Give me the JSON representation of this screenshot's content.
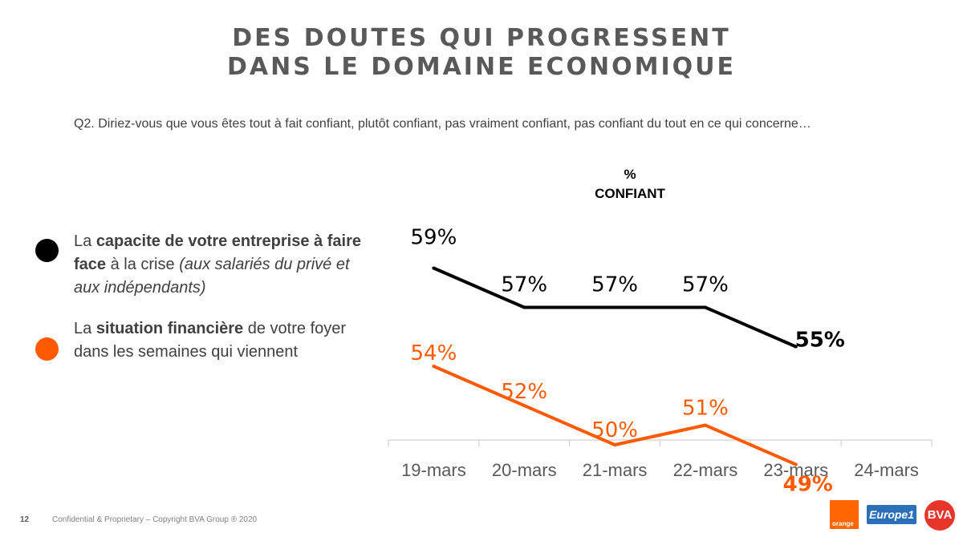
{
  "header": {
    "title_line1": "DES DOUTES QUI PROGRESSENT",
    "title_line2": "DANS LE DOMAINE ECONOMIQUE",
    "question": "Q2. Diriez-vous que vous êtes tout à fait confiant, plutôt confiant, pas vraiment confiant, pas confiant du tout en ce qui concerne…",
    "pct_line1": "%",
    "pct_line2": "CONFIANT"
  },
  "legend": [
    {
      "color": "#000000",
      "text_prefix": "La ",
      "text_bold": "capacite de votre entreprise à faire face",
      "text_after": " à la crise ",
      "text_italic": "(aux salariés du privé et aux indépendants)"
    },
    {
      "color": "#ff5a00",
      "text_prefix": "La ",
      "text_bold": "situation financière",
      "text_after": " de votre foyer dans les semaines qui viennent",
      "text_italic": ""
    }
  ],
  "chart_data": {
    "type": "line",
    "categories": [
      "19-mars",
      "20-mars",
      "21-mars",
      "22-mars",
      "23-mars",
      "24-mars"
    ],
    "series": [
      {
        "color": "#000000",
        "values": [
          59,
          57,
          57,
          57,
          55,
          null
        ],
        "labels": [
          "59%",
          "57%",
          "57%",
          "57%",
          "55%",
          ""
        ]
      },
      {
        "color": "#ff5a00",
        "values": [
          54,
          52,
          50,
          51,
          49,
          null
        ],
        "labels": [
          "54%",
          "52%",
          "50%",
          "51%",
          "49%",
          ""
        ]
      }
    ],
    "grid": false,
    "legend_position": "left"
  },
  "footer": {
    "page_number": "12",
    "copyright": "Confidential & Proprietary – Copyright BVA Group ®  2020",
    "logo_orange": "orange",
    "logo_europe1": "Europe1",
    "logo_bva": "BVA"
  }
}
